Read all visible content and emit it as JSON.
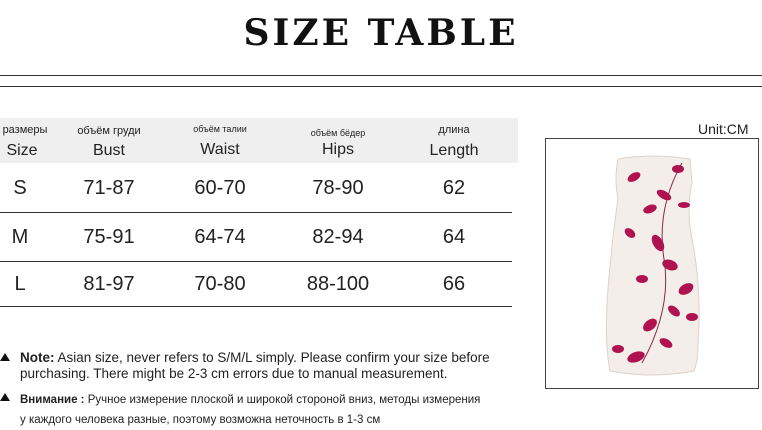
{
  "title": "SIZE TABLE",
  "unit": "Unit:CM",
  "table": {
    "headers": [
      {
        "ru": "размеры",
        "en": "Size"
      },
      {
        "ru": "объём груди",
        "en": "Bust"
      },
      {
        "ru": "объём талии",
        "en": "Waist"
      },
      {
        "ru": "объём бёдер",
        "en": "Hips"
      },
      {
        "ru": "длина",
        "en": "Length"
      }
    ],
    "rows": [
      [
        "S",
        "71-87",
        "60-70",
        "78-90",
        "62"
      ],
      [
        "M",
        "75-91",
        "64-74",
        "82-94",
        "64"
      ],
      [
        "L",
        "81-97",
        "70-80",
        "88-100",
        "66"
      ]
    ]
  },
  "notes": {
    "en_label": "Note:",
    "en_line1": "Asian size, never refers to S/M/L simply. Please confirm your size before",
    "en_line2": "purchasing. There might be 2-3 cm errors due to manual measurement.",
    "ru_label": "Внимание :",
    "ru_line1": "Ручное измерение плоской и широкой стороной вниз, методы измерения",
    "ru_line2": "у каждого человека разные, поэтому возможна неточность в 1-3 см"
  },
  "product_image": {
    "dress_color": "#f3eee9",
    "leaf_color": "#b0124f"
  }
}
